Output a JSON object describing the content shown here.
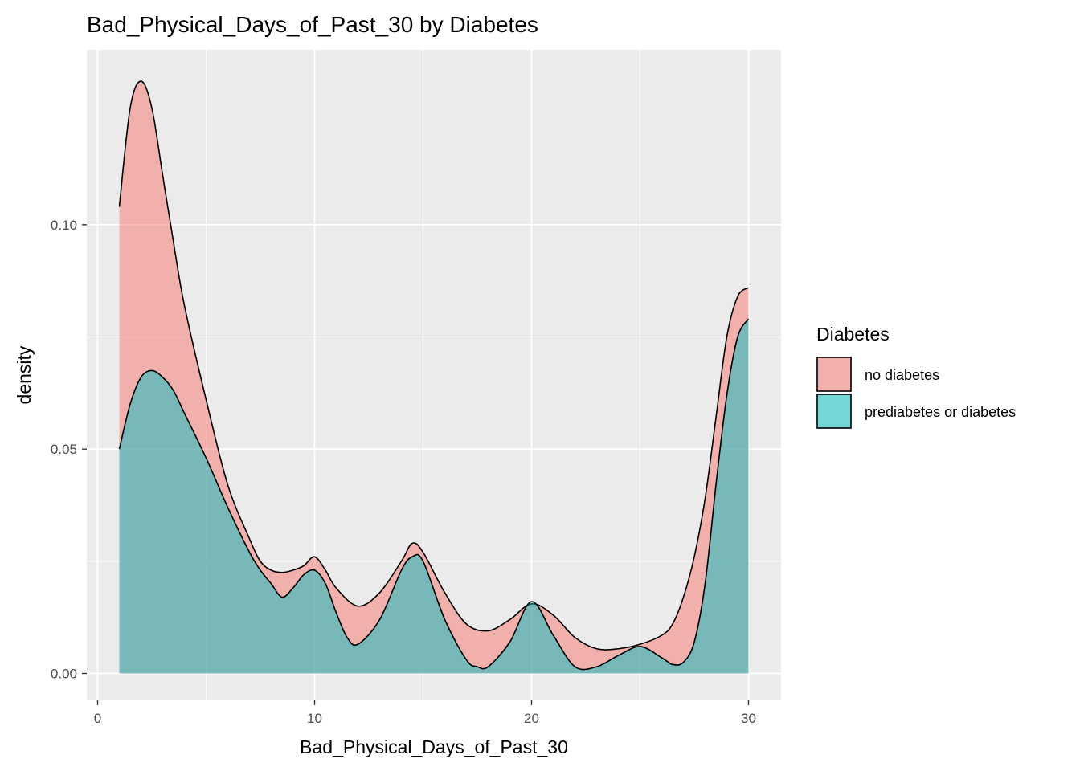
{
  "chart_data": {
    "type": "area",
    "subtype": "density",
    "title": "Bad_Physical_Days_of_Past_30 by Diabetes",
    "xlabel": "Bad_Physical_Days_of_Past_30",
    "ylabel": "density",
    "xlim": [
      -0.5,
      31.5
    ],
    "ylim": [
      -0.006,
      0.139
    ],
    "x_ticks": [
      0,
      10,
      20,
      30
    ],
    "x_tick_labels": [
      "0",
      "10",
      "20",
      "30"
    ],
    "y_ticks": [
      0.0,
      0.05,
      0.1
    ],
    "y_tick_labels": [
      "0.00",
      "0.05",
      "0.10"
    ],
    "grid": true,
    "legend": {
      "title": "Diabetes",
      "position": "right"
    },
    "series": [
      {
        "name": "no diabetes",
        "color": "#F8766D",
        "x": [
          1,
          1.5,
          2,
          2.5,
          3,
          3.5,
          4,
          5,
          6,
          7,
          7.5,
          8,
          8.5,
          9,
          9.5,
          10,
          10.5,
          11,
          12,
          13,
          14,
          14.5,
          15,
          16,
          17,
          18,
          19,
          20,
          21,
          22,
          23,
          24,
          25,
          26,
          26.5,
          27,
          27.5,
          28,
          28.5,
          29,
          29.5,
          30
        ],
        "values": [
          0.104,
          0.126,
          0.132,
          0.126,
          0.111,
          0.096,
          0.082,
          0.061,
          0.042,
          0.03,
          0.025,
          0.023,
          0.0225,
          0.023,
          0.024,
          0.026,
          0.023,
          0.019,
          0.015,
          0.018,
          0.025,
          0.029,
          0.027,
          0.018,
          0.011,
          0.0095,
          0.012,
          0.0155,
          0.013,
          0.008,
          0.0055,
          0.0055,
          0.0065,
          0.0085,
          0.011,
          0.017,
          0.026,
          0.039,
          0.057,
          0.075,
          0.084,
          0.086
        ]
      },
      {
        "name": "prediabetes or diabetes",
        "color": "#00BFC4",
        "x": [
          1,
          1.5,
          2,
          2.5,
          3,
          3.5,
          4,
          5,
          6,
          7,
          7.5,
          8,
          8.5,
          9,
          9.5,
          10,
          10.5,
          11,
          11.5,
          12,
          13,
          14,
          14.5,
          15,
          16,
          17,
          17.5,
          18,
          19,
          20,
          21,
          22,
          23,
          24,
          25,
          26,
          26.5,
          27,
          27.5,
          28,
          28.5,
          29,
          29.5,
          30
        ],
        "values": [
          0.05,
          0.06,
          0.066,
          0.0675,
          0.066,
          0.063,
          0.058,
          0.048,
          0.037,
          0.027,
          0.023,
          0.02,
          0.017,
          0.019,
          0.022,
          0.023,
          0.02,
          0.0135,
          0.008,
          0.0065,
          0.012,
          0.023,
          0.026,
          0.025,
          0.012,
          0.003,
          0.0015,
          0.0015,
          0.007,
          0.016,
          0.0085,
          0.0015,
          0.0015,
          0.004,
          0.006,
          0.0035,
          0.002,
          0.0025,
          0.007,
          0.02,
          0.042,
          0.062,
          0.075,
          0.079
        ]
      }
    ]
  }
}
